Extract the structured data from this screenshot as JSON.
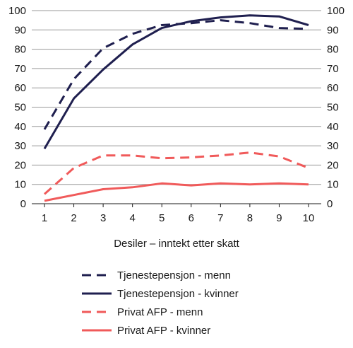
{
  "chart_data": {
    "type": "line",
    "xlabel": "Desiler – inntekt etter skatt",
    "ylabel": "",
    "x": [
      1,
      2,
      3,
      4,
      5,
      6,
      7,
      8,
      9,
      10
    ],
    "xticks": [
      "1",
      "2",
      "3",
      "4",
      "5",
      "6",
      "7",
      "8",
      "9",
      "10"
    ],
    "ylim": [
      0,
      100
    ],
    "yticks": [
      "0",
      "10",
      "20",
      "30",
      "40",
      "50",
      "60",
      "70",
      "80",
      "90",
      "100"
    ],
    "grid": true,
    "legend_position": "bottom",
    "series": [
      {
        "name": "Tjenestepensjon - menn",
        "values": [
          38.5,
          64.5,
          80.5,
          88,
          92.5,
          93.5,
          95,
          93.5,
          91,
          90.5
        ],
        "color": "#1f1f4f",
        "dashed": true
      },
      {
        "name": "Tjenestepensjon - kvinner",
        "values": [
          28.5,
          54.5,
          69.5,
          82.5,
          91,
          94.5,
          96.5,
          97.5,
          97,
          92.5
        ],
        "color": "#1f1f4f",
        "dashed": false
      },
      {
        "name": "Privat AFP - menn",
        "values": [
          5,
          18.5,
          25,
          25,
          23.5,
          24,
          25,
          26.5,
          24.5,
          18.5
        ],
        "color": "#f05a5a",
        "dashed": true
      },
      {
        "name": "Privat AFP - kvinner",
        "values": [
          1.5,
          4.5,
          7.5,
          8.5,
          10.5,
          9.5,
          10.5,
          10,
          10.5,
          10
        ],
        "color": "#f05a5a",
        "dashed": false
      }
    ]
  }
}
